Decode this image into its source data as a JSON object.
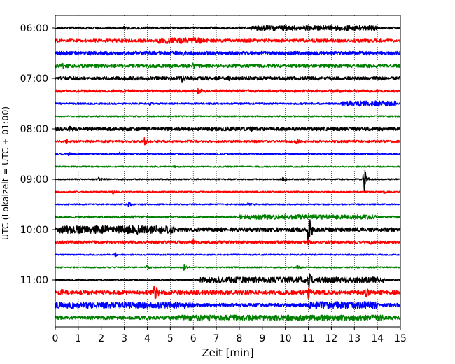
{
  "chart_data": {
    "type": "line",
    "subtype": "helicorder",
    "xlabel": "Zeit  [min]",
    "ylabel": "UTC (Lokalzeit = UTC + 01:00)",
    "xlim": [
      0,
      15
    ],
    "x_ticks": [
      0,
      1,
      2,
      3,
      4,
      5,
      6,
      7,
      8,
      9,
      10,
      11,
      12,
      13,
      14,
      15
    ],
    "x_tick_labels": [
      "0",
      "1",
      "2",
      "3",
      "4",
      "5",
      "6",
      "7",
      "8",
      "9",
      "10",
      "11",
      "12",
      "13",
      "14",
      "15"
    ],
    "y_tick_labels": [
      "06:00",
      "07:00",
      "08:00",
      "09:00",
      "10:00",
      "11:00"
    ],
    "y_tick_row_index": [
      0,
      4,
      8,
      12,
      16,
      20
    ],
    "grid_x": true,
    "grid_style": "dotted",
    "row_minutes": 15,
    "trace_colors": [
      "#000000",
      "#ff0000",
      "#0000ff",
      "#008000"
    ],
    "rows": [
      {
        "time": "06:00",
        "color": "#000000",
        "noise": 0.5,
        "events": [
          {
            "t": 3.0,
            "amp": 0.4
          },
          {
            "t": 8.5,
            "amp": 0.6,
            "len": 5.5
          }
        ]
      },
      {
        "time": "06:15",
        "color": "#ff0000",
        "noise": 0.7,
        "events": [
          {
            "t": 4.5,
            "amp": 0.6,
            "len": 2
          },
          {
            "t": 10.8,
            "amp": 0.4
          }
        ]
      },
      {
        "time": "06:30",
        "color": "#0000ff",
        "noise": 0.8,
        "events": [
          {
            "t": 5.5,
            "amp": 0.5
          }
        ]
      },
      {
        "time": "06:45",
        "color": "#008000",
        "noise": 0.8,
        "events": [
          {
            "t": 0.3,
            "amp": 0.5
          },
          {
            "t": 6.0,
            "amp": 0.5
          }
        ]
      },
      {
        "time": "07:00",
        "color": "#000000",
        "noise": 0.8,
        "events": [
          {
            "t": 5.5,
            "amp": 1.0
          },
          {
            "t": 7.5,
            "amp": 0.5
          }
        ]
      },
      {
        "time": "07:15",
        "color": "#ff0000",
        "noise": 0.6,
        "events": [
          {
            "t": 6.2,
            "amp": 1.0
          },
          {
            "t": 12.3,
            "amp": 0.4
          }
        ]
      },
      {
        "time": "07:30",
        "color": "#0000ff",
        "noise": 0.4,
        "events": [
          {
            "t": 4.1,
            "amp": 0.6
          },
          {
            "t": 12.4,
            "amp": 0.8,
            "len": 2.4
          }
        ]
      },
      {
        "time": "07:45",
        "color": "#008000",
        "noise": 0.3,
        "events": []
      },
      {
        "time": "08:00",
        "color": "#000000",
        "noise": 0.8,
        "events": [
          {
            "t": 0.6,
            "amp": 0.6
          },
          {
            "t": 7.5,
            "amp": 0.6
          },
          {
            "t": 8.5,
            "amp": 0.5
          }
        ]
      },
      {
        "time": "08:15",
        "color": "#ff0000",
        "noise": 0.5,
        "events": [
          {
            "t": 0.5,
            "amp": 0.5
          },
          {
            "t": 3.9,
            "amp": 1.2
          },
          {
            "t": 10.5,
            "amp": 0.6
          }
        ]
      },
      {
        "time": "08:30",
        "color": "#0000ff",
        "noise": 0.4,
        "events": [
          {
            "t": 0.6,
            "amp": 0.5
          },
          {
            "t": 2.8,
            "amp": 0.4
          }
        ]
      },
      {
        "time": "08:45",
        "color": "#008000",
        "noise": 0.3,
        "events": [
          {
            "t": 5.2,
            "amp": 0.4
          }
        ]
      },
      {
        "time": "09:00",
        "color": "#000000",
        "noise": 0.3,
        "events": [
          {
            "t": 1.9,
            "amp": 0.8
          },
          {
            "t": 9.9,
            "amp": 1.2
          },
          {
            "t": 13.4,
            "amp": 8.5
          }
        ]
      },
      {
        "time": "09:15",
        "color": "#ff0000",
        "noise": 0.3,
        "events": [
          {
            "t": 2.5,
            "amp": 0.9
          },
          {
            "t": 14.3,
            "amp": 0.7
          }
        ]
      },
      {
        "time": "09:30",
        "color": "#0000ff",
        "noise": 0.3,
        "events": [
          {
            "t": 3.2,
            "amp": 1.0
          },
          {
            "t": 8.4,
            "amp": 0.8
          }
        ]
      },
      {
        "time": "09:45",
        "color": "#008000",
        "noise": 0.5,
        "events": [
          {
            "t": 3.3,
            "amp": 0.5
          },
          {
            "t": 8.0,
            "amp": 0.5,
            "len": 6
          }
        ]
      },
      {
        "time": "10:00",
        "color": "#000000",
        "noise": 0.9,
        "events": [
          {
            "t": 0.2,
            "amp": 0.8,
            "len": 5
          },
          {
            "t": 3.6,
            "amp": 1.0
          },
          {
            "t": 11.0,
            "amp": 9.5
          }
        ]
      },
      {
        "time": "10:15",
        "color": "#ff0000",
        "noise": 0.6,
        "events": [
          {
            "t": 6.0,
            "amp": 0.5
          },
          {
            "t": 11.0,
            "amp": 0.5
          },
          {
            "t": 13.7,
            "amp": 0.5
          }
        ]
      },
      {
        "time": "10:30",
        "color": "#0000ff",
        "noise": 0.3,
        "events": [
          {
            "t": 2.6,
            "amp": 0.9
          }
        ]
      },
      {
        "time": "10:45",
        "color": "#008000",
        "noise": 0.3,
        "events": [
          {
            "t": 4.0,
            "amp": 0.8
          },
          {
            "t": 5.6,
            "amp": 1.2
          },
          {
            "t": 10.5,
            "amp": 1.4
          }
        ]
      },
      {
        "time": "11:00",
        "color": "#000000",
        "noise": 0.4,
        "events": [
          {
            "t": 6.3,
            "amp": 0.9,
            "len": 8
          },
          {
            "t": 11.0,
            "amp": 3
          }
        ]
      },
      {
        "time": "11:15",
        "color": "#ff0000",
        "noise": 0.9,
        "events": [
          {
            "t": 0.3,
            "amp": 0.7
          },
          {
            "t": 4.3,
            "amp": 5.5
          },
          {
            "t": 11.0,
            "amp": 2
          },
          {
            "t": 13.5,
            "amp": 2
          }
        ]
      },
      {
        "time": "11:30",
        "color": "#0000ff",
        "noise": 0.8,
        "events": [
          {
            "t": 0.0,
            "amp": 0.6,
            "len": 6
          },
          {
            "t": 11.0,
            "amp": 0.8,
            "len": 3
          }
        ]
      },
      {
        "time": "11:45",
        "color": "#008000",
        "noise": 0.8,
        "events": [
          {
            "t": 5.3,
            "amp": 0.4,
            "len": 9
          }
        ]
      }
    ]
  }
}
